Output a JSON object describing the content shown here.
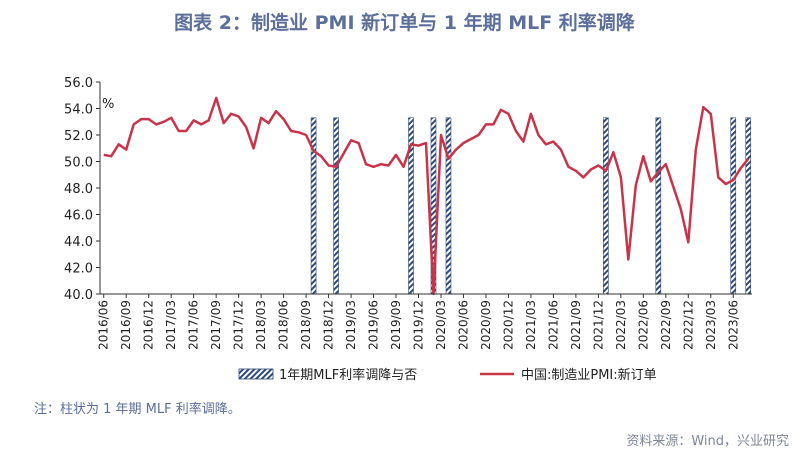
{
  "title": "图表 2：制造业 PMI 新订单与 1 年期 MLF 利率调降",
  "note": "注：柱状为 1 年期 MLF 利率调降。",
  "source": "资料来源：Wind，兴业研究",
  "chart_data": {
    "type": "line",
    "unit_label": "%",
    "ylim": [
      40,
      56
    ],
    "yticks": [
      "40.0",
      "42.0",
      "44.0",
      "46.0",
      "48.0",
      "50.0",
      "52.0",
      "54.0",
      "56.0"
    ],
    "xticks": [
      "2016/06",
      "2016/09",
      "2016/12",
      "2017/03",
      "2017/06",
      "2017/09",
      "2017/12",
      "2018/03",
      "2018/06",
      "2018/09",
      "2018/12",
      "2019/03",
      "2019/06",
      "2019/09",
      "2019/12",
      "2020/03",
      "2020/06",
      "2020/09",
      "2020/12",
      "2021/03",
      "2021/06",
      "2021/09",
      "2021/12",
      "2022/03",
      "2022/06",
      "2022/09",
      "2022/12",
      "2023/03",
      "2023/06"
    ],
    "start": "2016/06",
    "series": [
      {
        "name": "中国:制造业PMI:新订单",
        "color": "#c8344a",
        "values": [
          50.5,
          50.4,
          51.3,
          50.9,
          52.8,
          53.2,
          53.2,
          52.8,
          53.0,
          53.3,
          52.3,
          52.3,
          53.1,
          52.8,
          53.1,
          54.8,
          52.9,
          53.6,
          53.4,
          52.6,
          51.0,
          53.3,
          52.9,
          53.8,
          53.2,
          52.3,
          52.2,
          52.0,
          50.8,
          50.4,
          49.7,
          49.6,
          50.6,
          51.6,
          51.4,
          49.8,
          49.6,
          49.8,
          49.7,
          50.5,
          49.6,
          51.3,
          51.2,
          51.4,
          29.3,
          52.0,
          50.2,
          50.9,
          51.4,
          51.7,
          52.0,
          52.8,
          52.8,
          53.9,
          53.6,
          52.3,
          51.5,
          53.6,
          52.0,
          51.3,
          51.5,
          50.9,
          49.6,
          49.3,
          48.8,
          49.4,
          49.7,
          49.3,
          50.7,
          48.8,
          42.6,
          48.2,
          50.4,
          48.5,
          49.2,
          49.8,
          48.1,
          46.4,
          43.9,
          50.9,
          54.1,
          53.6,
          48.8,
          48.3,
          48.6,
          49.5,
          50.2
        ]
      },
      {
        "name": "1年期MLF利率调降与否",
        "type": "bar",
        "marked_months": [
          "2018/10",
          "2019/01",
          "2019/11",
          "2020/02",
          "2020/04",
          "2022/01",
          "2022/08",
          "2023/06",
          "2023/08"
        ]
      }
    ]
  }
}
